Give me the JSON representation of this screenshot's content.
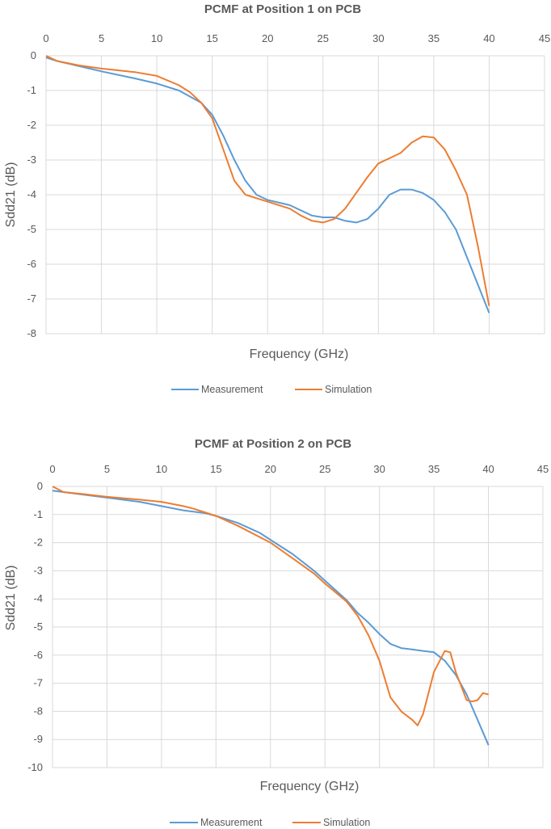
{
  "chart_data": [
    {
      "type": "line",
      "title": "PCMF at Position 1 on PCB",
      "xlabel": "Frequency (GHz)",
      "ylabel": "Sdd21 (dB)",
      "xlim": [
        0,
        45
      ],
      "ylim": [
        -8,
        0
      ],
      "xticks": [
        0,
        5,
        10,
        15,
        20,
        25,
        30,
        35,
        40,
        45
      ],
      "yticks": [
        0,
        -1,
        -2,
        -3,
        -4,
        -5,
        -6,
        -7,
        -8
      ],
      "x_axis_position": "top",
      "grid": true,
      "legend": "bottom",
      "series": [
        {
          "name": "Measurement",
          "color": "#5B9BD5",
          "x": [
            0,
            1,
            3,
            5,
            8,
            10,
            12,
            14,
            15,
            16,
            17,
            18,
            19,
            20,
            22,
            23,
            24,
            25,
            26,
            27,
            28,
            29,
            30,
            31,
            32,
            33,
            34,
            35,
            36,
            37,
            38,
            39,
            40
          ],
          "y": [
            -0.05,
            -0.15,
            -0.3,
            -0.45,
            -0.65,
            -0.8,
            -1.0,
            -1.35,
            -1.7,
            -2.3,
            -3.0,
            -3.6,
            -4.0,
            -4.15,
            -4.3,
            -4.45,
            -4.6,
            -4.65,
            -4.65,
            -4.75,
            -4.8,
            -4.7,
            -4.4,
            -4.0,
            -3.85,
            -3.85,
            -3.95,
            -4.15,
            -4.5,
            -5.0,
            -5.8,
            -6.6,
            -7.4
          ]
        },
        {
          "name": "Simulation",
          "color": "#ED7D31",
          "x": [
            0,
            1,
            3,
            5,
            8,
            10,
            12,
            13,
            14,
            15,
            16,
            17,
            18,
            19,
            20,
            22,
            23,
            24,
            25,
            26,
            27,
            28,
            29,
            30,
            31,
            32,
            33,
            34,
            35,
            36,
            37,
            38,
            39,
            40
          ],
          "y": [
            0,
            -0.15,
            -0.28,
            -0.37,
            -0.47,
            -0.58,
            -0.85,
            -1.05,
            -1.35,
            -1.8,
            -2.7,
            -3.6,
            -4.0,
            -4.1,
            -4.2,
            -4.4,
            -4.6,
            -4.75,
            -4.8,
            -4.7,
            -4.4,
            -3.95,
            -3.5,
            -3.1,
            -2.95,
            -2.8,
            -2.5,
            -2.32,
            -2.35,
            -2.7,
            -3.3,
            -4.0,
            -5.5,
            -7.2
          ]
        }
      ]
    },
    {
      "type": "line",
      "title": "PCMF at Position 2 on PCB",
      "xlabel": "Frequency (GHz)",
      "ylabel": "Sdd21 (dB)",
      "xlim": [
        0,
        45
      ],
      "ylim": [
        -10,
        0
      ],
      "xticks": [
        0,
        5,
        10,
        15,
        20,
        25,
        30,
        35,
        40,
        45
      ],
      "yticks": [
        0,
        -1,
        -2,
        -3,
        -4,
        -5,
        -6,
        -7,
        -8,
        -9,
        -10
      ],
      "x_axis_position": "top",
      "grid": true,
      "legend": "bottom",
      "series": [
        {
          "name": "Measurement",
          "color": "#5B9BD5",
          "x": [
            0,
            2,
            5,
            8,
            10,
            12,
            14,
            15,
            17,
            19,
            20,
            22,
            24,
            25,
            27,
            28,
            29,
            30,
            31,
            32,
            33,
            34,
            35,
            36,
            37,
            38,
            39,
            40
          ],
          "y": [
            -0.15,
            -0.25,
            -0.4,
            -0.55,
            -0.7,
            -0.85,
            -0.95,
            -1.05,
            -1.3,
            -1.65,
            -1.9,
            -2.4,
            -3.0,
            -3.35,
            -4.05,
            -4.5,
            -4.85,
            -5.25,
            -5.6,
            -5.75,
            -5.8,
            -5.85,
            -5.9,
            -6.2,
            -6.7,
            -7.4,
            -8.3,
            -9.2
          ]
        },
        {
          "name": "Simulation",
          "color": "#ED7D31",
          "x": [
            0,
            1,
            3,
            5,
            8,
            10,
            12,
            13,
            15,
            17,
            20,
            22,
            24,
            25,
            27,
            28,
            29,
            30,
            31,
            32,
            33,
            33.5,
            34,
            35,
            36,
            36.5,
            37,
            38,
            38.5,
            39,
            39.5,
            40
          ],
          "y": [
            0,
            -0.2,
            -0.28,
            -0.37,
            -0.47,
            -0.55,
            -0.7,
            -0.8,
            -1.05,
            -1.4,
            -2.0,
            -2.55,
            -3.1,
            -3.45,
            -4.1,
            -4.6,
            -5.3,
            -6.2,
            -7.5,
            -8.0,
            -8.3,
            -8.5,
            -8.1,
            -6.6,
            -5.85,
            -5.9,
            -6.6,
            -7.6,
            -7.65,
            -7.6,
            -7.35,
            -7.4
          ]
        }
      ]
    }
  ]
}
